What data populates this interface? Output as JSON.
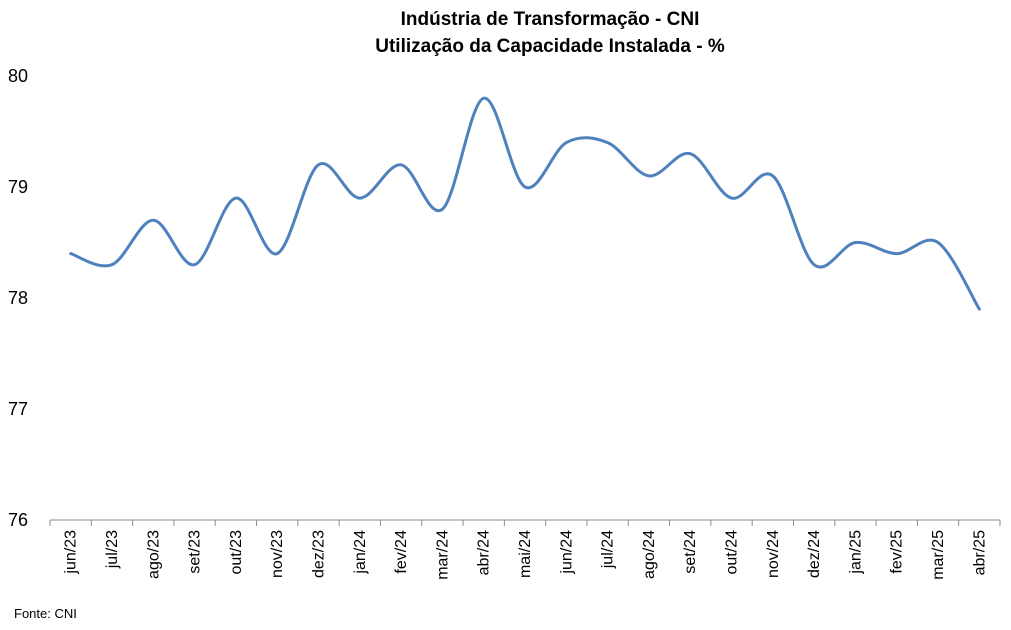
{
  "chart_data": {
    "type": "line",
    "title": [
      "Indústria de Transformação - CNI",
      "Utilização da Capacidade Instalada - %"
    ],
    "xlabel": "",
    "ylabel": "",
    "categories": [
      "jun/23",
      "jul/23",
      "ago/23",
      "set/23",
      "out/23",
      "nov/23",
      "dez/23",
      "jan/24",
      "fev/24",
      "mar/24",
      "abr/24",
      "mai/24",
      "jun/24",
      "jul/24",
      "ago/24",
      "set/24",
      "out/24",
      "nov/24",
      "dez/24",
      "jan/25",
      "fev/25",
      "mar/25",
      "abr/25"
    ],
    "series": [
      {
        "values": [
          78.4,
          78.3,
          78.7,
          78.3,
          78.9,
          78.4,
          79.2,
          78.9,
          79.2,
          78.8,
          79.8,
          79.0,
          79.4,
          79.4,
          79.1,
          79.3,
          78.9,
          79.1,
          78.3,
          78.5,
          78.4,
          78.5,
          77.9
        ],
        "color": "#4f81bd"
      }
    ],
    "ylim": [
      76,
      80
    ],
    "yticks": [
      76,
      77,
      78,
      79,
      80
    ],
    "grid": false,
    "legend": "none"
  },
  "source": "Fonte: CNI"
}
